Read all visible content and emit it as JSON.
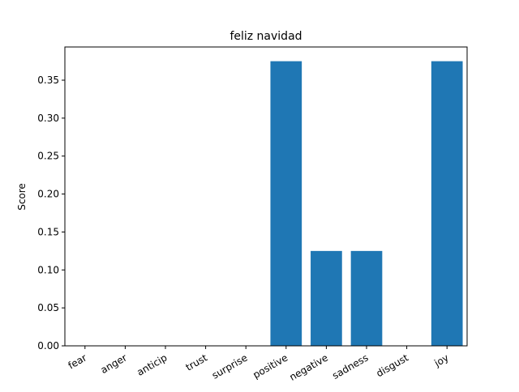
{
  "chart_data": {
    "type": "bar",
    "title": "feliz navidad",
    "xlabel": "",
    "ylabel": "Score",
    "categories": [
      "fear",
      "anger",
      "anticip",
      "trust",
      "surprise",
      "positive",
      "negative",
      "sadness",
      "disgust",
      "joy"
    ],
    "values": [
      0,
      0,
      0,
      0,
      0,
      0.375,
      0.125,
      0.125,
      0,
      0.375
    ],
    "ylim": [
      0,
      0.39375
    ],
    "yticks": [
      "0.00",
      "0.05",
      "0.10",
      "0.15",
      "0.20",
      "0.25",
      "0.30",
      "0.35"
    ],
    "bar_color": "#1f77b4",
    "grid": false,
    "legend": "none"
  }
}
